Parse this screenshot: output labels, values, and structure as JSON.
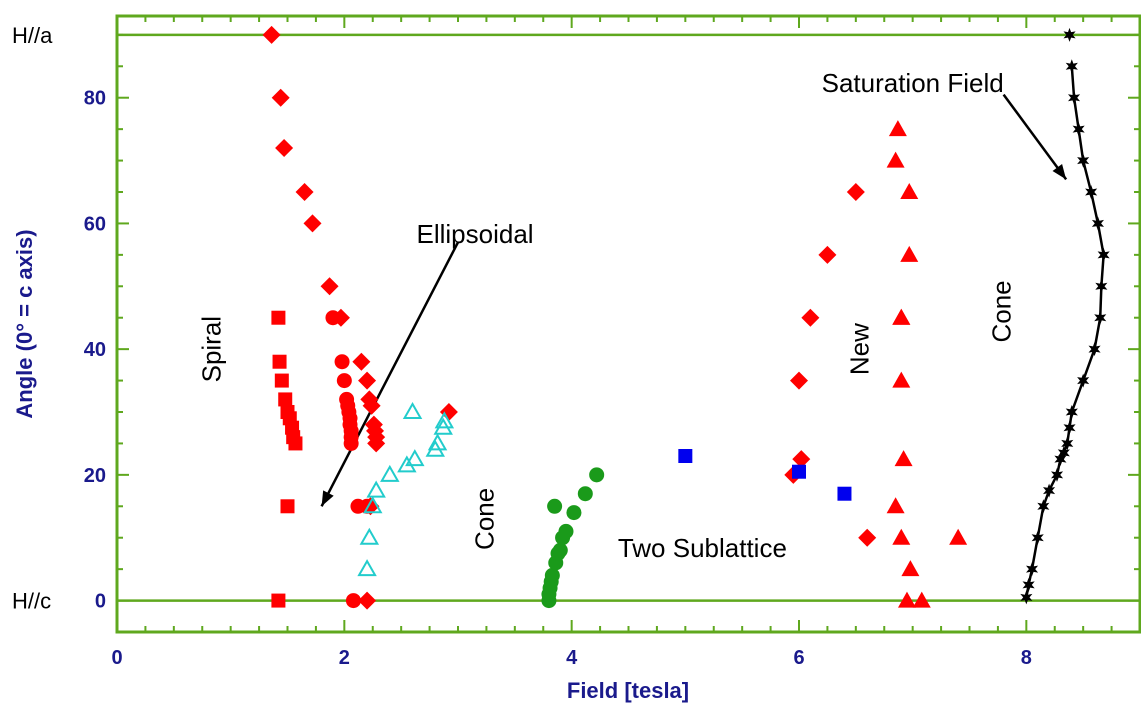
{
  "chart_data": {
    "type": "scatter",
    "xlabel": "Field [tesla]",
    "ylabel": "Angle (0° = c axis)",
    "xlim": [
      0,
      9
    ],
    "ylim": [
      -5,
      93
    ],
    "xticks": [
      0,
      2,
      4,
      6,
      8
    ],
    "yticks": [
      0,
      20,
      40,
      60,
      80
    ],
    "grid": false,
    "colors": {
      "axis": "#5fa81e",
      "tick_text": "#1a1a8c",
      "red": "#ff0000",
      "cyan": "#22cccc",
      "green": "#1a9a1a",
      "blue": "#0000ee",
      "black": "#000000"
    },
    "reference_lines": [
      {
        "label": "H//a",
        "y": 90
      },
      {
        "label": "H//c",
        "y": 0
      }
    ],
    "annotations": [
      {
        "id": "spiral",
        "text": "Spiral",
        "x": 0.85,
        "y": 40,
        "rotate": true
      },
      {
        "id": "ellipsoidal",
        "text": "Ellipsoidal",
        "x": 3.15,
        "y": 58,
        "rotate": false
      },
      {
        "id": "cone-low",
        "text": "Cone",
        "x": 3.25,
        "y": 13,
        "rotate": true
      },
      {
        "id": "two-sublattice",
        "text": "Two Sublattice",
        "x": 5.15,
        "y": 8,
        "rotate": false
      },
      {
        "id": "new",
        "text": "New",
        "x": 6.55,
        "y": 40,
        "rotate": true
      },
      {
        "id": "cone-high",
        "text": "Cone",
        "x": 7.8,
        "y": 46,
        "rotate": true
      },
      {
        "id": "saturation",
        "text": "Saturation Field",
        "x": 7.0,
        "y": 82,
        "rotate": false
      }
    ],
    "arrows": [
      {
        "x1": 3.0,
        "y1": 57,
        "x2": 1.8,
        "y2": 15
      },
      {
        "x1": 7.8,
        "y1": 80.5,
        "x2": 8.35,
        "y2": 67
      }
    ],
    "series": [
      {
        "name": "",
        "marker": "square",
        "color": "red",
        "x": [
          1.42,
          1.43,
          1.45,
          1.48,
          1.5,
          1.52,
          1.54,
          1.55,
          1.57,
          1.5,
          1.42
        ],
        "y": [
          45,
          38,
          35,
          32,
          30,
          29,
          27.5,
          26,
          25,
          15,
          0
        ]
      },
      {
        "name": "",
        "marker": "circle",
        "color": "red",
        "x": [
          1.9,
          1.98,
          2.0,
          2.02,
          2.03,
          2.04,
          2.05,
          2.05,
          2.06,
          2.06,
          2.06,
          2.12,
          2.2,
          2.08
        ],
        "y": [
          45,
          38,
          35,
          32,
          31,
          30,
          29,
          28,
          27,
          26,
          25,
          15,
          15,
          0
        ]
      },
      {
        "name": "",
        "marker": "diamond",
        "color": "red",
        "x": [
          1.36,
          1.44,
          1.47,
          1.65,
          1.72,
          1.87,
          1.97,
          2.15,
          2.2,
          2.22,
          2.24,
          2.26,
          2.27,
          2.28,
          2.28,
          2.92,
          2.23,
          2.2,
          5.95,
          6.02,
          6.0,
          6.1,
          6.25,
          6.5,
          6.6
        ],
        "y": [
          90,
          80,
          72,
          65,
          60,
          50,
          45,
          38,
          35,
          32,
          31,
          28,
          27,
          26,
          25,
          30,
          15,
          0,
          20,
          22.5,
          35,
          45,
          55,
          65,
          10
        ]
      },
      {
        "name": "",
        "marker": "triangle-open",
        "color": "cyan",
        "x": [
          2.2,
          2.22,
          2.25,
          2.28,
          2.4,
          2.55,
          2.62,
          2.8,
          2.82,
          2.87,
          2.88,
          2.6
        ],
        "y": [
          5,
          10,
          15,
          17.5,
          20,
          21.5,
          22.5,
          24,
          25,
          27.5,
          28.5,
          30
        ]
      },
      {
        "name": "",
        "marker": "circle",
        "color": "green",
        "x": [
          3.8,
          3.8,
          3.81,
          3.82,
          3.83,
          3.86,
          3.88,
          3.9,
          3.92,
          3.95,
          3.85,
          4.02,
          4.12,
          4.22
        ],
        "y": [
          0,
          1,
          2,
          3,
          4,
          6,
          7.5,
          8,
          10,
          11,
          15,
          14,
          17,
          20
        ]
      },
      {
        "name": "",
        "marker": "square",
        "color": "blue",
        "x": [
          5.0,
          6.0,
          6.4
        ],
        "y": [
          23,
          20.5,
          17
        ]
      },
      {
        "name": "",
        "marker": "triangle",
        "color": "red",
        "x": [
          6.87,
          6.85,
          6.97,
          6.9,
          6.97,
          6.9,
          6.9,
          6.92,
          6.85,
          6.9,
          7.4,
          6.98,
          6.95,
          7.08
        ],
        "y": [
          75,
          70,
          65,
          45,
          55,
          35,
          45,
          22.5,
          15,
          10,
          10,
          5,
          0,
          0
        ]
      },
      {
        "name": "Saturation Field",
        "marker": "star",
        "color": "black",
        "connected": true,
        "x": [
          8.0,
          8.02,
          8.05,
          8.1,
          8.15,
          8.2,
          8.27,
          8.3,
          8.33,
          8.36,
          8.38,
          8.4,
          8.5,
          8.6,
          8.65,
          8.66,
          8.68,
          8.63,
          8.57,
          8.5,
          8.46,
          8.42,
          8.4
        ],
        "y": [
          0.5,
          2.5,
          5,
          10,
          15,
          17.5,
          20,
          22.5,
          23.5,
          25,
          27.5,
          30,
          35,
          40,
          45,
          50,
          55,
          60,
          65,
          70,
          75,
          80,
          85
        ]
      },
      {
        "name": "",
        "marker": "star",
        "color": "black",
        "x": [
          8.38
        ],
        "y": [
          90
        ]
      }
    ]
  }
}
